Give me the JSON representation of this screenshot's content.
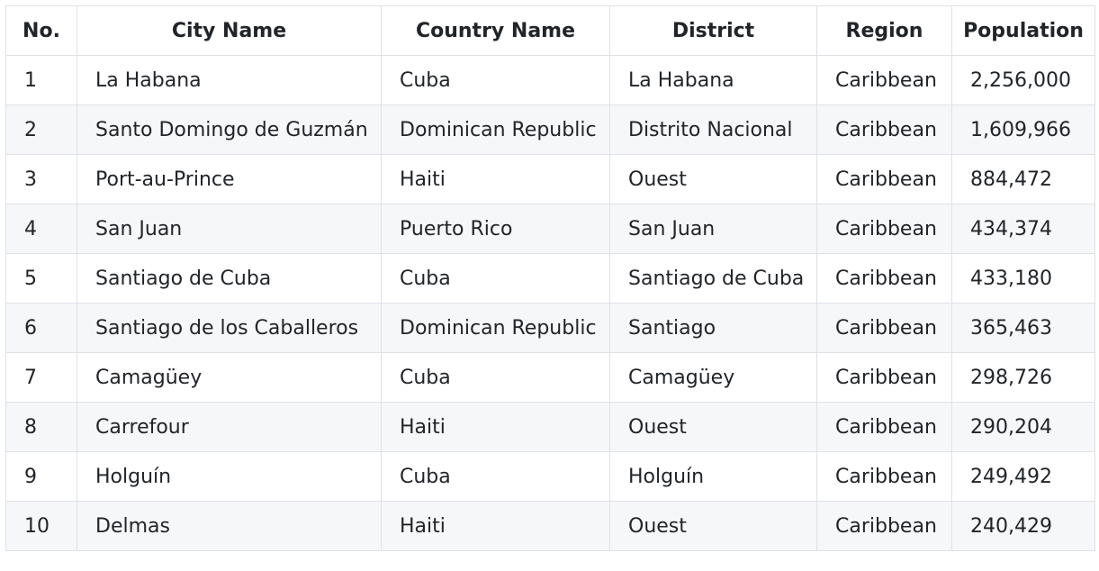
{
  "table": {
    "headers": [
      "No.",
      "City Name",
      "Country Name",
      "District",
      "Region",
      "Population"
    ],
    "rows": [
      [
        "1",
        "La Habana",
        "Cuba",
        "La Habana",
        "Caribbean",
        "2,256,000"
      ],
      [
        "2",
        "Santo Domingo de Guzmán",
        "Dominican Republic",
        "Distrito Nacional",
        "Caribbean",
        "1,609,966"
      ],
      [
        "3",
        "Port-au-Prince",
        "Haiti",
        "Ouest",
        "Caribbean",
        "884,472"
      ],
      [
        "4",
        "San Juan",
        "Puerto Rico",
        "San Juan",
        "Caribbean",
        "434,374"
      ],
      [
        "5",
        "Santiago de Cuba",
        "Cuba",
        "Santiago de Cuba",
        "Caribbean",
        "433,180"
      ],
      [
        "6",
        "Santiago de los Caballeros",
        "Dominican Republic",
        "Santiago",
        "Caribbean",
        "365,463"
      ],
      [
        "7",
        "Camagüey",
        "Cuba",
        "Camagüey",
        "Caribbean",
        "298,726"
      ],
      [
        "8",
        "Carrefour",
        "Haiti",
        "Ouest",
        "Caribbean",
        "290,204"
      ],
      [
        "9",
        "Holguín",
        "Cuba",
        "Holguín",
        "Caribbean",
        "249,492"
      ],
      [
        "10",
        "Delmas",
        "Haiti",
        "Ouest",
        "Caribbean",
        "240,429"
      ]
    ]
  }
}
